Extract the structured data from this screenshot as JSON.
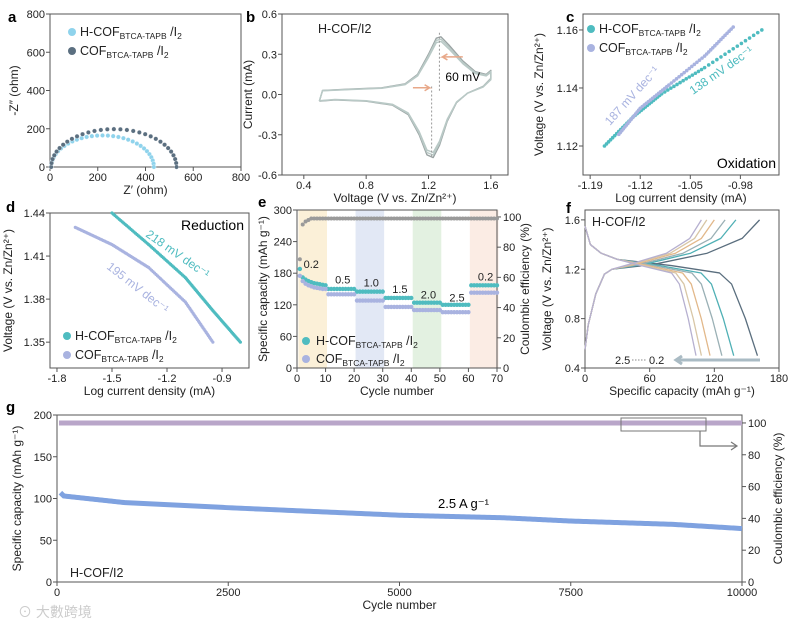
{
  "colors": {
    "hcof_a": "#8fd3ec",
    "cof_a": "#5b6f80",
    "hcof": "#4fbcc0",
    "cof": "#a9b3e0",
    "ce": "#9a9a9a",
    "cv": "#9aa3a3",
    "g_cap": "#7fa2e0",
    "g_ce": "#b9a6c9",
    "arrow": "#e8a889"
  },
  "legend": {
    "hcof": {
      "main": "H-COF",
      "sub": "BTCA-TAPB",
      "tail": " /I",
      "sub2": "2"
    },
    "cof": {
      "main": "COF",
      "sub": "BTCA-TAPB",
      "tail": " /I",
      "sub2": "2"
    }
  },
  "chart_data": [
    {
      "panel": "a",
      "type": "scatter",
      "xlabel": "Z′ (ohm)",
      "ylabel": "-Z″ (ohm)",
      "xlim": [
        0,
        800
      ],
      "ylim": [
        0,
        800
      ],
      "xticks": [
        "0",
        "200",
        "400",
        "600",
        "800"
      ],
      "yticks": [
        "0",
        "200",
        "400",
        "600",
        "800"
      ],
      "series": [
        {
          "name": "H-COF/I2",
          "x_start": 5,
          "x_end": 435,
          "peak": 165
        },
        {
          "name": "COF/I2",
          "x_start": 5,
          "x_end": 530,
          "peak": 198
        }
      ]
    },
    {
      "panel": "b",
      "type": "line",
      "title": "H-COF/I2",
      "xlabel": "Voltage (V vs. Zn/Zn²⁺)",
      "ylabel": "Current (mA)",
      "xlim": [
        0.4,
        1.6
      ],
      "ylim": [
        -0.6,
        0.6
      ],
      "xticks": [
        "0.4",
        "0.8",
        "1.2",
        "1.6"
      ],
      "yticks": [
        "-0.6",
        "-0.3",
        "0.0",
        "0.3",
        "0.6"
      ],
      "annotation": "60 mV",
      "points": [
        [
          0.5,
          -0.05
        ],
        [
          0.52,
          0.03
        ],
        [
          0.7,
          0.04
        ],
        [
          0.9,
          0.05
        ],
        [
          1.05,
          0.08
        ],
        [
          1.13,
          0.15
        ],
        [
          1.2,
          0.3
        ],
        [
          1.25,
          0.42
        ],
        [
          1.28,
          0.43
        ],
        [
          1.33,
          0.37
        ],
        [
          1.42,
          0.25
        ],
        [
          1.5,
          0.17
        ],
        [
          1.57,
          0.15
        ],
        [
          1.6,
          0.18
        ],
        [
          1.6,
          0.12
        ],
        [
          1.55,
          0.06
        ],
        [
          1.45,
          0.01
        ],
        [
          1.38,
          -0.06
        ],
        [
          1.32,
          -0.2
        ],
        [
          1.27,
          -0.38
        ],
        [
          1.23,
          -0.47
        ],
        [
          1.19,
          -0.45
        ],
        [
          1.14,
          -0.3
        ],
        [
          1.07,
          -0.15
        ],
        [
          0.97,
          -0.08
        ],
        [
          0.8,
          -0.05
        ],
        [
          0.6,
          -0.04
        ],
        [
          0.5,
          -0.05
        ]
      ]
    },
    {
      "panel": "c",
      "type": "scatter",
      "xlabel": "Log current density (mA)",
      "ylabel": "Voltage (V vs. Zn/Zn²⁺)",
      "xticks": [
        "-1.19",
        "-1.12",
        "-1.05",
        "-0.98"
      ],
      "yticks": [
        "1.12",
        "1.14",
        "1.16"
      ],
      "label": "Oxidation",
      "series": [
        {
          "name": "H-COF/I2",
          "slope": "138 mV dec⁻¹",
          "points": [
            [
              -1.17,
              1.12
            ],
            [
              -1.13,
              1.13
            ],
            [
              -1.09,
              1.138
            ],
            [
              -1.03,
              1.147
            ],
            [
              -0.95,
              1.16
            ]
          ]
        },
        {
          "name": "COF/I2",
          "slope": "187 mV dec⁻¹",
          "points": [
            [
              -1.15,
              1.124
            ],
            [
              -1.12,
              1.133
            ],
            [
              -1.08,
              1.141
            ],
            [
              -1.03,
              1.151
            ],
            [
              -0.99,
              1.161
            ]
          ]
        }
      ]
    },
    {
      "panel": "d",
      "type": "line",
      "xlabel": "Log current density (mA)",
      "ylabel": "Voltage (V vs. Zn/Zn²⁺)",
      "xticks": [
        "-1.8",
        "-1.5",
        "-1.2",
        "-0.9"
      ],
      "yticks": [
        "1.35",
        "1.38",
        "1.41",
        "1.44"
      ],
      "label": "Reduction",
      "series": [
        {
          "name": "H-COF/I2",
          "slope": "218 mV dec⁻¹",
          "points": [
            [
              -1.5,
              1.44
            ],
            [
              -1.3,
              1.418
            ],
            [
              -1.1,
              1.395
            ],
            [
              -0.95,
              1.372
            ],
            [
              -0.8,
              1.35
            ]
          ]
        },
        {
          "name": "COF/I2",
          "slope": "195 mV dec⁻¹",
          "points": [
            [
              -1.7,
              1.43
            ],
            [
              -1.5,
              1.418
            ],
            [
              -1.3,
              1.402
            ],
            [
              -1.1,
              1.378
            ],
            [
              -0.95,
              1.35
            ]
          ]
        }
      ]
    },
    {
      "panel": "e",
      "type": "scatter",
      "xlabel": "Cycle number",
      "ylabel": "Specific capacity (mAh g⁻¹)",
      "ylabel2": "Coulombic efficiency (%)",
      "xticks": [
        "0",
        "10",
        "20",
        "30",
        "40",
        "50",
        "60",
        "70"
      ],
      "yticks": [
        "0",
        "60",
        "120",
        "180",
        "240",
        "300"
      ],
      "yticks2": [
        "0",
        "20",
        "40",
        "60",
        "80",
        "100"
      ],
      "rates": [
        "0.2",
        "0.5",
        "1.0",
        "1.5",
        "2.0",
        "2.5",
        "0.2"
      ],
      "hcof": [
        [
          188,
          172,
          168,
          165,
          163,
          161,
          160,
          159,
          158,
          157
        ],
        150,
        145,
        133,
        124,
        120,
        157
      ],
      "cof": [
        [
          175,
          165,
          160,
          157,
          155,
          153,
          152,
          151,
          150,
          150
        ],
        140,
        128,
        116,
        110,
        106,
        143
      ],
      "ce_first": [
        72,
        95,
        97,
        98,
        99
      ],
      "ce": 99
    },
    {
      "panel": "f",
      "type": "line",
      "title": "H-COF/I2",
      "xlabel": "Specific capacity (mAh g⁻¹)",
      "ylabel": "Voltage (V vs. Zn/Zn²⁺)",
      "xticks": [
        "0",
        "60",
        "120",
        "180"
      ],
      "yticks": [
        "0.4",
        "0.8",
        "1.2",
        "1.6"
      ],
      "arrow_from": "2.5",
      "arrow_to": "0.2",
      "rates": [
        "0.2",
        "0.5",
        "1.0",
        "1.5",
        "2.0",
        "2.5"
      ],
      "discharge_capacity": [
        160,
        138,
        127,
        116,
        108,
        103
      ],
      "charge_capacity": [
        162,
        140,
        130,
        120,
        113,
        108
      ],
      "curve_colors": [
        "#5a6e7e",
        "#4fb0b5",
        "#9ab0b5",
        "#e2b88a",
        "#d8c6a6",
        "#b6b0d0"
      ]
    },
    {
      "panel": "g",
      "type": "scatter",
      "xlabel": "Cycle number",
      "ylabel": "Specific capacity (mAh g⁻¹)",
      "ylabel2": "Coulombic efficiency (%)",
      "xticks": [
        "0",
        "2500",
        "5000",
        "7500",
        "10000"
      ],
      "yticks": [
        "0",
        "50",
        "100",
        "150",
        "200"
      ],
      "yticks2": [
        "0",
        "20",
        "40",
        "60",
        "80",
        "100"
      ],
      "label": "2.5 A g⁻¹",
      "title": "H-COF/I2",
      "capacity": [
        [
          50,
          107
        ],
        [
          100,
          103
        ],
        [
          1000,
          95
        ],
        [
          2500,
          89
        ],
        [
          5000,
          80
        ],
        [
          6500,
          77
        ],
        [
          7500,
          73
        ],
        [
          9000,
          69
        ],
        [
          10000,
          64
        ]
      ],
      "ce": 100
    }
  ],
  "panel_labels": [
    "a",
    "b",
    "c",
    "d",
    "e",
    "f",
    "g"
  ],
  "watermark": "大數跨境"
}
